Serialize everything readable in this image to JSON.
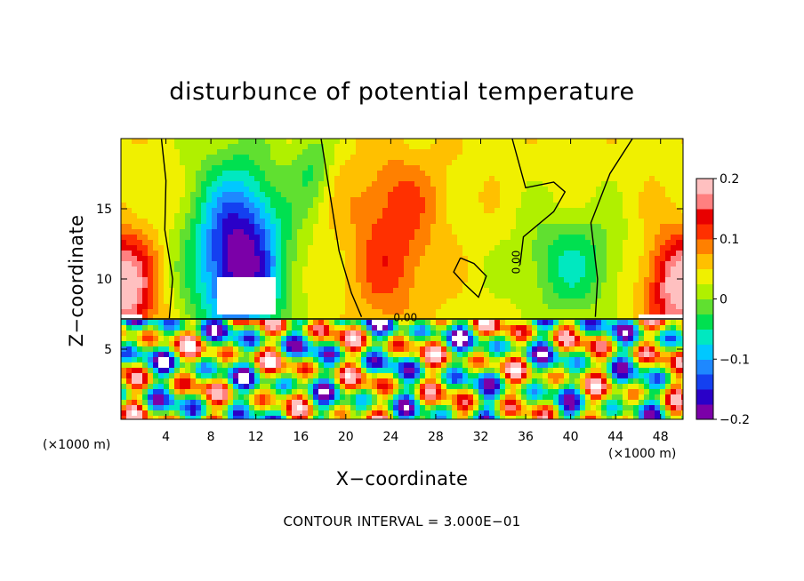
{
  "chart_data": {
    "type": "heatmap",
    "title": "disturbunce of potential temperature",
    "xlabel": "X−coordinate",
    "ylabel": "Z−coordinate",
    "x_unit": "(×1000 m)",
    "x_unit_right": "(×1000 m)",
    "xlim": [
      0,
      50
    ],
    "ylim": [
      0,
      20
    ],
    "x_ticks": [
      4,
      8,
      12,
      16,
      20,
      24,
      28,
      32,
      36,
      40,
      44,
      48
    ],
    "y_ticks": [
      5,
      10,
      15
    ],
    "colorbar": {
      "ticks": [
        0.2,
        0.1,
        0,
        -0.1,
        -0.2
      ],
      "tick_labels": [
        "0.2",
        "0.1",
        "0",
        "−0.1",
        "−0.2"
      ],
      "range": [
        -0.2,
        0.2
      ],
      "colors": [
        "#7b00a8",
        "#2a00c8",
        "#1440f0",
        "#1e88ff",
        "#00c8ff",
        "#00e8c0",
        "#00e050",
        "#60e030",
        "#b0f000",
        "#f0f000",
        "#ffc000",
        "#ff8000",
        "#ff3000",
        "#e80000",
        "#ff8080",
        "#ffc0c0"
      ]
    },
    "contour_labels": [
      {
        "text": "0.00",
        "x": 25.3,
        "z": 7.0,
        "rotate": 0
      },
      {
        "text": "0.00",
        "x": 35.5,
        "z": 11.2,
        "rotate": -90
      }
    ],
    "footnote": "CONTOUR INTERVAL = 3.000E−01"
  }
}
